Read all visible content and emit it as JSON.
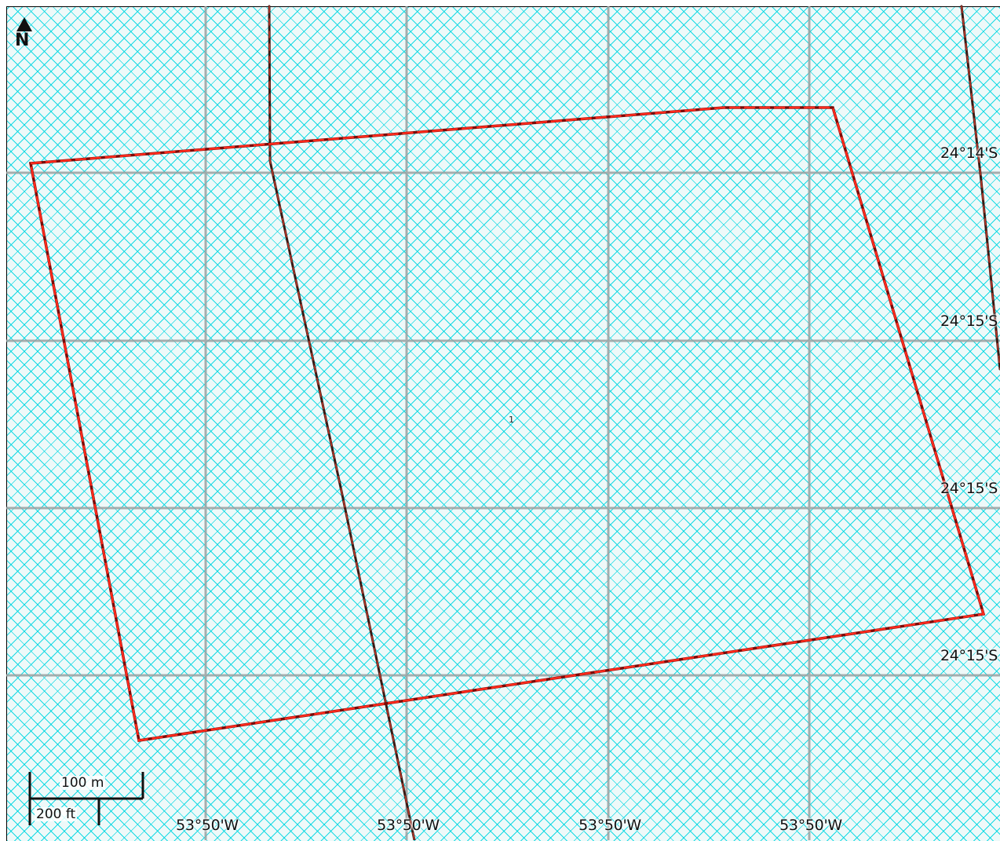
{
  "map": {
    "north_arrow_label": "N",
    "parcel_label": "1",
    "latitude_labels": [
      "24°14'S",
      "24°15'S",
      "24°15'S",
      "24°15'S"
    ],
    "longitude_labels": [
      "53°50'W",
      "53°50'W",
      "53°50'W",
      "53°50'W"
    ],
    "scale_bar": {
      "metric_label": "100 m",
      "imperial_label": "200 ft"
    },
    "colors": {
      "background": "#eef9f9",
      "hatch": "#00d7e1",
      "grid": "#9aa0a0",
      "parcel_boundary": "#e0201a",
      "road": "#3a1a14"
    }
  }
}
